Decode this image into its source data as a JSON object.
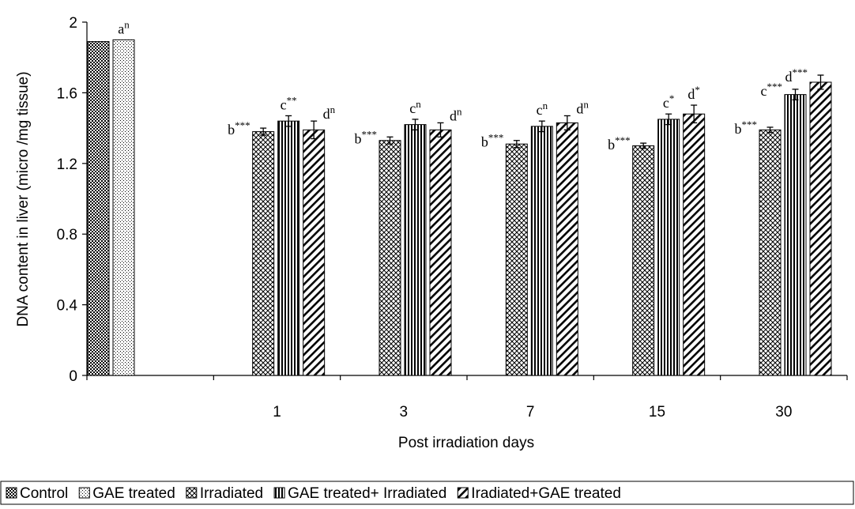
{
  "chart_data": {
    "type": "bar",
    "title": "",
    "xlabel": "Post irradiation days",
    "ylabel": "DNA content in liver (micro /mg tissue)",
    "ylim": [
      0,
      2
    ],
    "yticks": [
      "0",
      "0.4",
      "0.8",
      "1.2",
      "1.6",
      "2"
    ],
    "grid": false,
    "legend_position": "bottom",
    "groups": [
      {
        "label": "",
        "bars": [
          {
            "series": "Control",
            "value": 1.89,
            "sig": ""
          },
          {
            "series": "GAE treated",
            "value": 1.9,
            "sig": "a",
            "sup": "n"
          }
        ]
      },
      {
        "label": "1",
        "bars": [
          {
            "series": "Irradiated",
            "value": 1.38,
            "err": 0.02,
            "sig": "b",
            "sup": "***"
          },
          {
            "series": "GAE treated+ Irradiated",
            "value": 1.44,
            "err": 0.03,
            "sig": "c",
            "sup": "**"
          },
          {
            "series": "Iradiated+GAE treated",
            "value": 1.39,
            "err": 0.05,
            "sig": "d",
            "sup": "n"
          }
        ]
      },
      {
        "label": "3",
        "bars": [
          {
            "series": "Irradiated",
            "value": 1.33,
            "err": 0.02,
            "sig": "b",
            "sup": "***"
          },
          {
            "series": "GAE treated+ Irradiated",
            "value": 1.42,
            "err": 0.03,
            "sig": "c",
            "sup": "n"
          },
          {
            "series": "Iradiated+GAE treated",
            "value": 1.39,
            "err": 0.04,
            "sig": "d",
            "sup": "n"
          }
        ]
      },
      {
        "label": "7",
        "bars": [
          {
            "series": "Irradiated",
            "value": 1.31,
            "err": 0.02,
            "sig": "b",
            "sup": "***"
          },
          {
            "series": "GAE treated+ Irradiated",
            "value": 1.41,
            "err": 0.03,
            "sig": "c",
            "sup": "n"
          },
          {
            "series": "Iradiated+GAE treated",
            "value": 1.43,
            "err": 0.04,
            "sig": "d",
            "sup": "n"
          }
        ]
      },
      {
        "label": "15",
        "bars": [
          {
            "series": "Irradiated",
            "value": 1.3,
            "err": 0.015,
            "sig": "b",
            "sup": "***"
          },
          {
            "series": "GAE treated+ Irradiated",
            "value": 1.45,
            "err": 0.03,
            "sig": "c",
            "sup": "*"
          },
          {
            "series": "Iradiated+GAE treated",
            "value": 1.48,
            "err": 0.05,
            "sig": "d",
            "sup": "*"
          }
        ]
      },
      {
        "label": "30",
        "bars": [
          {
            "series": "Irradiated",
            "value": 1.39,
            "err": 0.015,
            "sig": "b",
            "sup": "***"
          },
          {
            "series": "GAE treated+ Irradiated",
            "value": 1.59,
            "err": 0.03,
            "sig": "c",
            "sup": "***"
          },
          {
            "series": "Iradiated+GAE treated",
            "value": 1.66,
            "err": 0.04,
            "sig": "d",
            "sup": "***"
          }
        ]
      }
    ],
    "legend": [
      {
        "series": "Control",
        "label": "Control",
        "pattern": "dots-dense"
      },
      {
        "series": "GAE treated",
        "label": "GAE treated",
        "pattern": "dots-light"
      },
      {
        "series": "Irradiated",
        "label": "Irradiated",
        "pattern": "crosshatch"
      },
      {
        "series": "GAE treated+ Irradiated",
        "label": "GAE treated+ Irradiated",
        "pattern": "vertical"
      },
      {
        "series": "Iradiated+GAE treated",
        "label": "Iradiated+GAE treated",
        "pattern": "diagonal"
      }
    ]
  }
}
